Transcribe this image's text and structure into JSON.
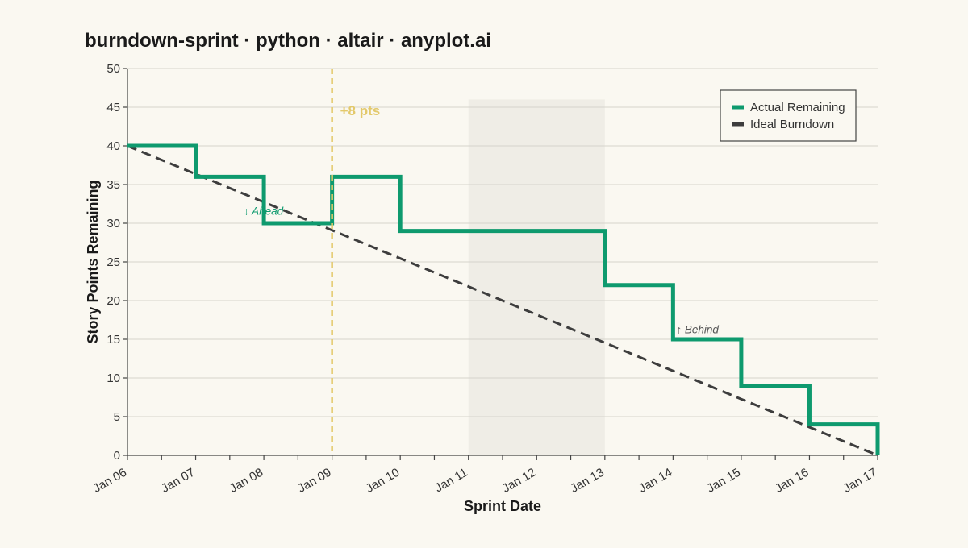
{
  "title": "burndown-sprint · python · altair · anyplot.ai",
  "chart_data": {
    "type": "line",
    "title": "burndown-sprint · python · altair · anyplot.ai",
    "xlabel": "Sprint Date",
    "ylabel": "Story Points Remaining",
    "categories": [
      "Jan 06",
      "Jan 07",
      "Jan 08",
      "Jan 09",
      "Jan 10",
      "Jan 11",
      "Jan 12",
      "Jan 13",
      "Jan 14",
      "Jan 15",
      "Jan 16",
      "Jan 17"
    ],
    "ylim": [
      0,
      50
    ],
    "yticks": [
      0,
      5,
      10,
      15,
      20,
      25,
      30,
      35,
      40,
      45,
      50
    ],
    "grid": true,
    "legend_position": "top-right",
    "series": [
      {
        "name": "Actual Remaining",
        "style": "step",
        "color": "#0e9a6e",
        "values": [
          40,
          36,
          30,
          36,
          29,
          29,
          29,
          22,
          15,
          9,
          4,
          0
        ]
      },
      {
        "name": "Ideal Burndown",
        "style": "dashed",
        "color": "#3d3d3d",
        "values": [
          40,
          36.36,
          32.73,
          29.09,
          25.45,
          21.82,
          18.18,
          14.55,
          10.91,
          7.27,
          3.64,
          0
        ]
      }
    ],
    "annotations": {
      "scope_change": {
        "x": "Jan 09",
        "label": "+8 pts",
        "color": "#e3c96b"
      },
      "weekend_band": {
        "x_start": "Jan 11",
        "x_end": "Jan 13",
        "y_top": 46,
        "color": "#efede6"
      },
      "ahead": {
        "x": "Jan 08",
        "y": 31.6,
        "label": "↓ Ahead",
        "color": "#0e9a6e"
      },
      "behind": {
        "x": "Jan 14",
        "y": 16.3,
        "label": "↑ Behind",
        "color": "#555555"
      }
    }
  }
}
